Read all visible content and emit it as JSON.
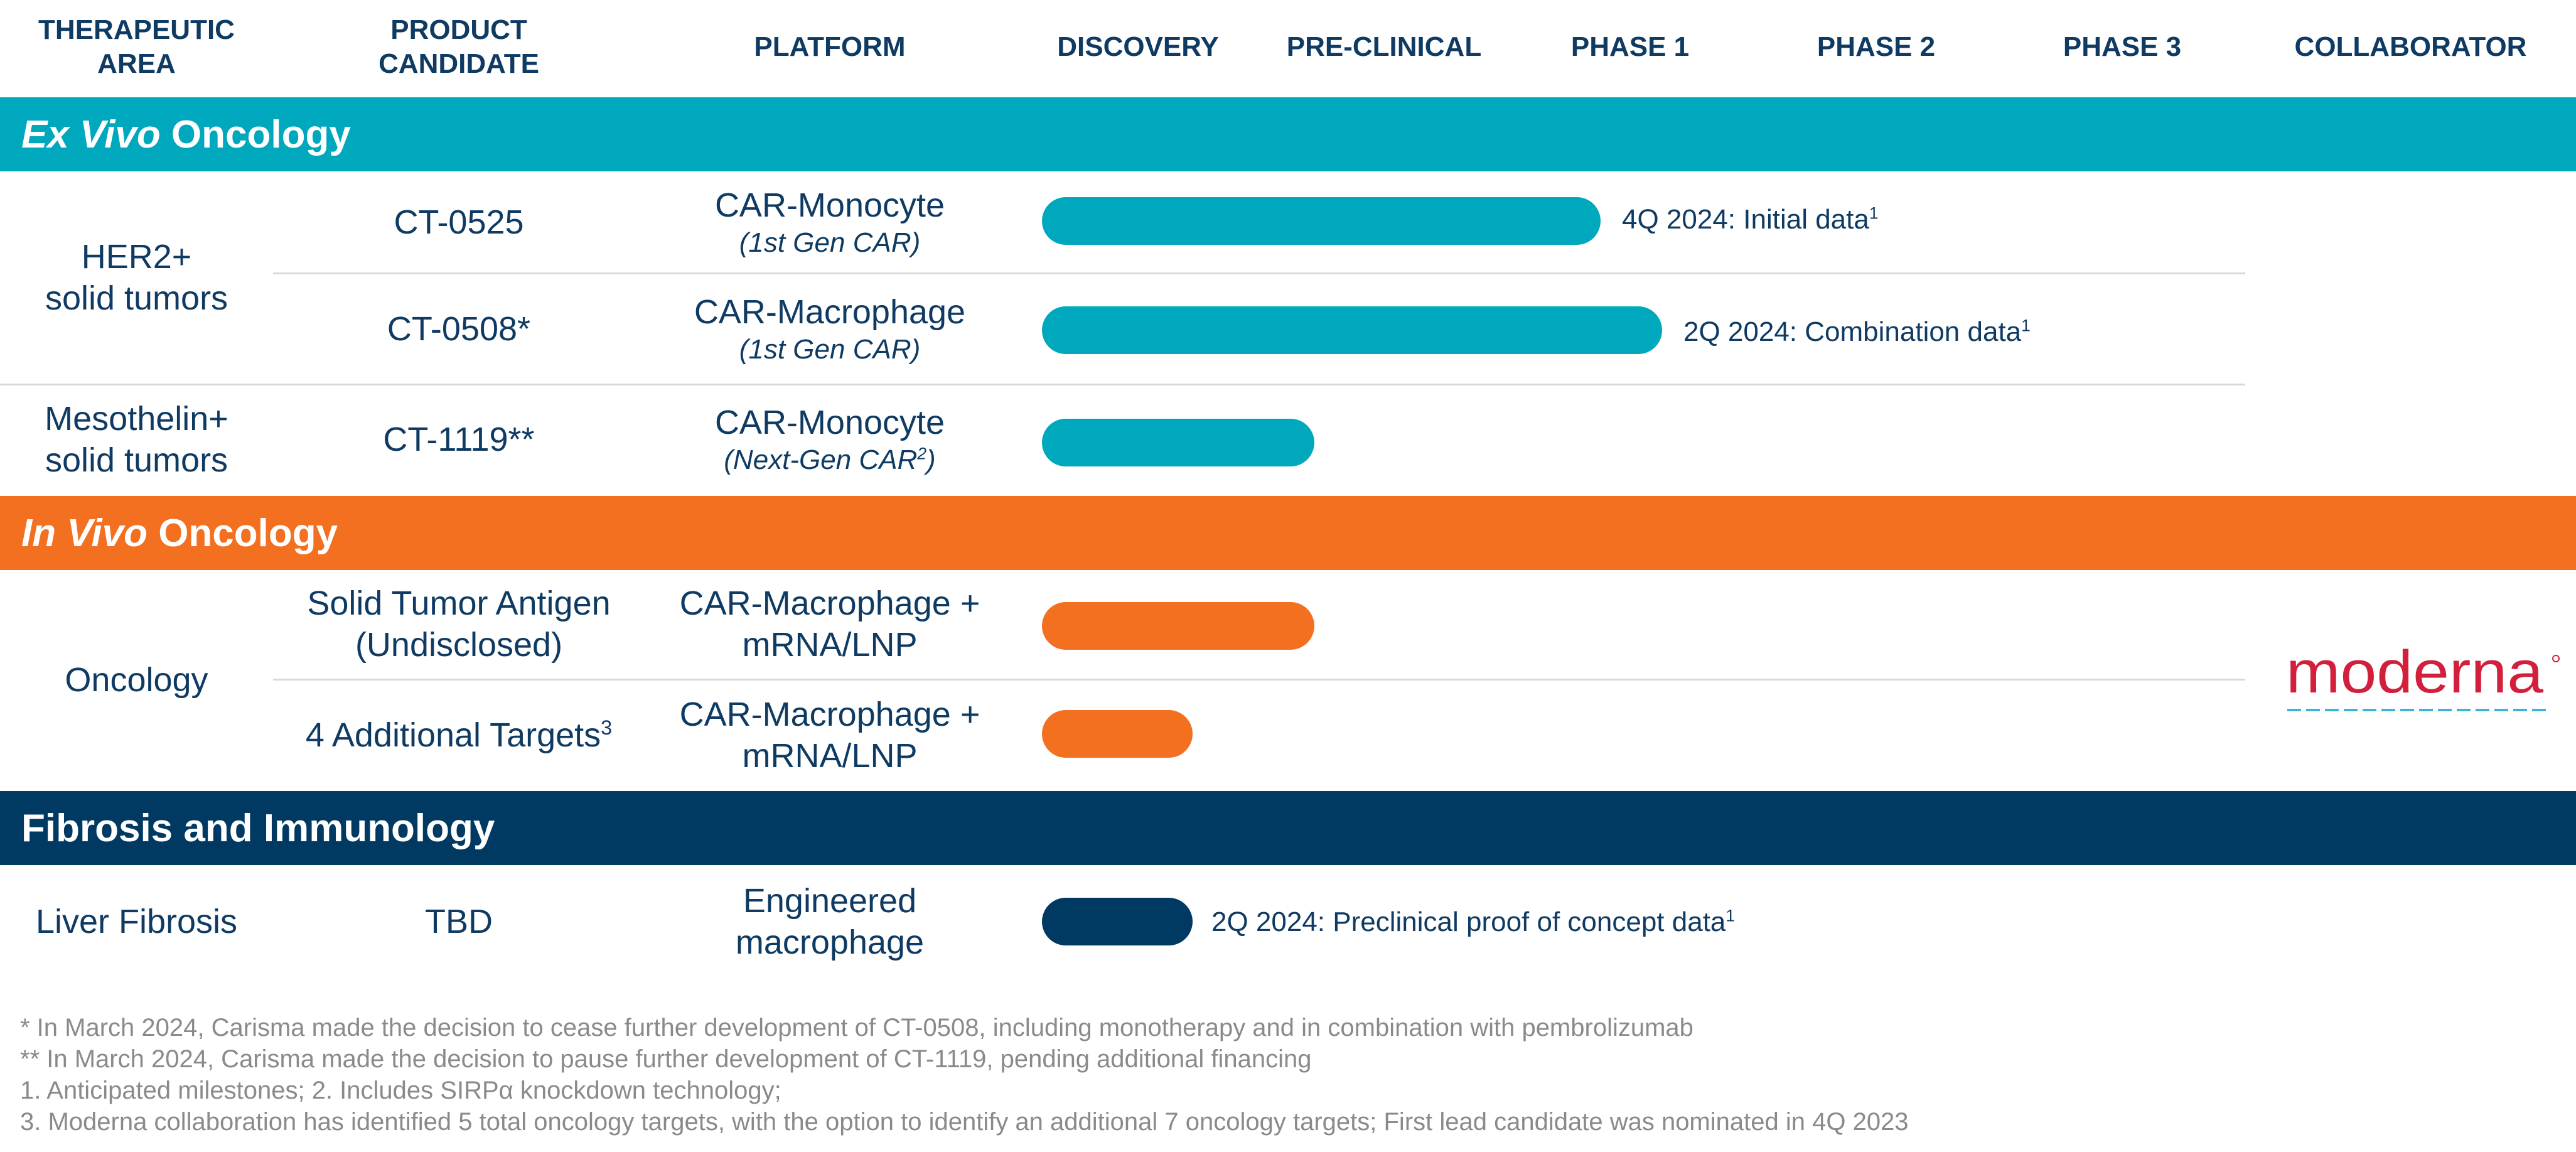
{
  "headers": {
    "therapeutic_area": [
      "THERAPEUTIC",
      "AREA"
    ],
    "product_candidate": [
      "PRODUCT",
      "CANDIDATE"
    ],
    "platform": "PLATFORM",
    "discovery": "DISCOVERY",
    "preclinical": "PRE-CLINICAL",
    "phase1": "PHASE 1",
    "phase2": "PHASE 2",
    "phase3": "PHASE 3",
    "collaborator": "COLLABORATOR"
  },
  "colors": {
    "teal": "#00a8bd",
    "orange": "#f37021",
    "navy": "#003a63",
    "text": "#0f3b63",
    "footnote": "#8a8a8a",
    "moderna": "#d21f3c"
  },
  "sections": {
    "ex_vivo": {
      "title_italic": "Ex Vivo",
      "title_rest": " Oncology"
    },
    "in_vivo": {
      "title_italic": "In Vivo",
      "title_rest": " Oncology"
    },
    "fibrosis": {
      "title": "Fibrosis and Immunology"
    }
  },
  "rows": {
    "her2_area": [
      "HER2+",
      "solid tumors"
    ],
    "ct0525": {
      "candidate": "CT-0525",
      "platform": "CAR-Monocyte",
      "platform_sub": "(1st Gen CAR)",
      "milestone": "4Q 2024: Initial data",
      "milestone_sup": "1",
      "progress_phase_fraction": 2.27
    },
    "ct0508": {
      "candidate": "CT-0508*",
      "platform": "CAR-Macrophage",
      "platform_sub": "(1st Gen CAR)",
      "milestone": "2Q 2024: Combination data",
      "milestone_sup": "1",
      "progress_phase_fraction": 2.52
    },
    "ct1119": {
      "area": [
        "Mesothelin+",
        "solid tumors"
      ],
      "candidate": "CT-1119**",
      "platform": "CAR-Monocyte",
      "platform_sub_pre": "(Next-Gen CAR",
      "platform_sub_sup": "2",
      "platform_sub_post": ")",
      "progress_phase_fraction": 1.1
    },
    "oncology_area": "Oncology",
    "solid_tumor": {
      "candidate": [
        "Solid Tumor Antigen",
        "(Undisclosed)"
      ],
      "platform": [
        "CAR-Macrophage +",
        "mRNA/LNP"
      ],
      "progress_phase_fraction": 1.1
    },
    "additional": {
      "candidate": "4 Additional Targets",
      "candidate_sup": "3",
      "platform": [
        "CAR-Macrophage +",
        "mRNA/LNP"
      ],
      "progress_phase_fraction": 0.61
    },
    "liver": {
      "area": "Liver Fibrosis",
      "candidate": "TBD",
      "platform": [
        "Engineered",
        "macrophage"
      ],
      "milestone": "2Q 2024: Preclinical proof of concept data",
      "milestone_sup": "1",
      "progress_phase_fraction": 0.61
    }
  },
  "collaborator": {
    "logo_text": "moderna"
  },
  "footnotes": [
    "* In March 2024, Carisma made the decision to cease further development of CT-0508, including monotherapy and in combination with pembrolizumab",
    "** In March 2024, Carisma made the decision to pause further development of CT-1119, pending additional financing",
    "1. Anticipated milestones; 2. Includes SIRPα knockdown technology;",
    "3. Moderna collaboration has identified 5 total oncology targets, with the option to identify an additional 7 oncology targets; First lead candidate was nominated in 4Q 2023"
  ]
}
